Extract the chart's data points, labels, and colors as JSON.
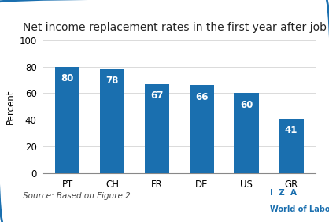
{
  "title": "Net income replacement rates in the first year after job loss",
  "categories": [
    "PT",
    "CH",
    "FR",
    "DE",
    "US",
    "GR"
  ],
  "values": [
    80,
    78,
    67,
    66,
    60,
    41
  ],
  "bar_color": "#1a6faf",
  "ylabel": "Percent",
  "ylim": [
    0,
    100
  ],
  "yticks": [
    0,
    20,
    40,
    60,
    80,
    100
  ],
  "source_text": "Source: Based on Figure 2.",
  "label_color": "#ffffff",
  "label_fontsize": 8.5,
  "title_fontsize": 10,
  "axis_fontsize": 8.5,
  "background_color": "#ffffff",
  "border_color": "#1a6faf",
  "iza_text_color": "#1a6faf",
  "bar_width": 0.55
}
